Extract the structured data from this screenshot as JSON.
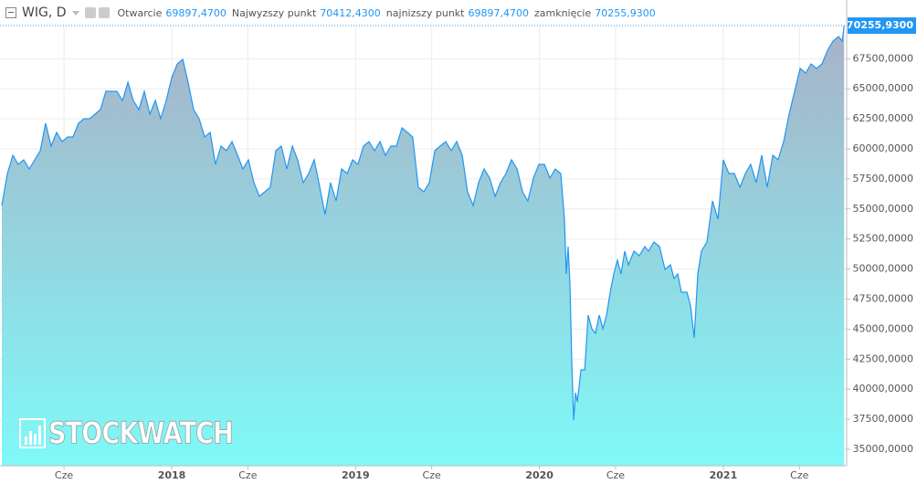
{
  "header": {
    "symbol": "WIG, D",
    "fields": [
      {
        "label": "Otwarcie",
        "value": "69897,4700"
      },
      {
        "label": "Najwyzszy punkt",
        "value": "70412,4300"
      },
      {
        "label": "najnizszy punkt",
        "value": "69897,4700"
      },
      {
        "label": "zamknięcie",
        "value": "70255,9300"
      }
    ]
  },
  "chart_data": {
    "type": "area",
    "watermark": "STOCKWATCH",
    "color": "#2196f3",
    "grid": true,
    "xlim": [
      2017.066,
      2021.661
    ],
    "ylim": [
      33630,
      70260
    ],
    "xticks": [
      {
        "value": 2017.414,
        "label": "Cze"
      },
      {
        "value": 2018.0,
        "label": "2018"
      },
      {
        "value": 2018.414,
        "label": "Cze"
      },
      {
        "value": 2019.0,
        "label": "2019"
      },
      {
        "value": 2019.414,
        "label": "Cze"
      },
      {
        "value": 2020.0,
        "label": "2020"
      },
      {
        "value": 2020.414,
        "label": "Cze"
      },
      {
        "value": 2021.0,
        "label": "2021"
      },
      {
        "value": 2021.414,
        "label": "Cze"
      }
    ],
    "yticks": [
      {
        "value": 35000,
        "label": "35000,0000"
      },
      {
        "value": 37500,
        "label": "37500,0000"
      },
      {
        "value": 40000,
        "label": "40000,0000"
      },
      {
        "value": 42500,
        "label": "42500,0000"
      },
      {
        "value": 45000,
        "label": "45000,0000"
      },
      {
        "value": 47500,
        "label": "47500,0000"
      },
      {
        "value": 50000,
        "label": "50000,0000"
      },
      {
        "value": 52500,
        "label": "52500,0000"
      },
      {
        "value": 55000,
        "label": "55000,0000"
      },
      {
        "value": 57500,
        "label": "57500,0000"
      },
      {
        "value": 60000,
        "label": "60000,0000"
      },
      {
        "value": 62500,
        "label": "62500,0000"
      },
      {
        "value": 65000,
        "label": "65000,0000"
      },
      {
        "value": 67500,
        "label": "67500,0000"
      }
    ],
    "last_price": {
      "value": 70255.93,
      "label": "70255,9300"
    },
    "x": [
      2017.076,
      2017.106,
      2017.136,
      2017.165,
      2017.195,
      2017.225,
      2017.255,
      2017.285,
      2017.314,
      2017.344,
      2017.374,
      2017.404,
      2017.434,
      2017.463,
      2017.493,
      2017.523,
      2017.553,
      2017.583,
      2017.612,
      2017.642,
      2017.672,
      2017.702,
      2017.732,
      2017.762,
      2017.791,
      2017.821,
      2017.851,
      2017.881,
      2017.911,
      2017.94,
      2017.97,
      2018.0,
      2018.03,
      2018.06,
      2018.089,
      2018.119,
      2018.149,
      2018.179,
      2018.209,
      2018.238,
      2018.268,
      2018.298,
      2018.328,
      2018.358,
      2018.387,
      2018.417,
      2018.447,
      2018.477,
      2018.507,
      2018.536,
      2018.566,
      2018.596,
      2018.626,
      2018.656,
      2018.685,
      2018.715,
      2018.745,
      2018.775,
      2018.805,
      2018.834,
      2018.864,
      2018.894,
      2018.924,
      2018.954,
      2018.984,
      2019.013,
      2019.043,
      2019.073,
      2019.103,
      2019.133,
      2019.162,
      2019.192,
      2019.222,
      2019.252,
      2019.282,
      2019.311,
      2019.341,
      2019.371,
      2019.401,
      2019.431,
      2019.46,
      2019.49,
      2019.52,
      2019.55,
      2019.58,
      2019.609,
      2019.639,
      2019.669,
      2019.699,
      2019.729,
      2019.759,
      2019.788,
      2019.818,
      2019.848,
      2019.878,
      2019.908,
      2019.937,
      2019.967,
      2019.997,
      2020.027,
      2020.057,
      2020.086,
      2020.116,
      2020.136,
      2020.146,
      2020.156,
      2020.166,
      2020.176,
      2020.186,
      2020.196,
      2020.206,
      2020.226,
      2020.246,
      2020.265,
      2020.285,
      2020.305,
      2020.325,
      2020.345,
      2020.365,
      2020.385,
      2020.404,
      2020.424,
      2020.444,
      2020.464,
      2020.484,
      2020.514,
      2020.543,
      2020.573,
      2020.593,
      2020.623,
      2020.653,
      2020.683,
      2020.712,
      2020.732,
      2020.752,
      2020.772,
      2020.802,
      2020.822,
      2020.842,
      2020.861,
      2020.881,
      2020.911,
      2020.941,
      2020.971,
      2021.0,
      2021.03,
      2021.06,
      2021.09,
      2021.12,
      2021.149,
      2021.179,
      2021.209,
      2021.239,
      2021.269,
      2021.298,
      2021.328,
      2021.358,
      2021.388,
      2021.418,
      2021.448,
      2021.477,
      2021.507,
      2021.537,
      2021.567,
      2021.597,
      2021.627,
      2021.647,
      2021.657
    ],
    "values": [
      55290,
      57950,
      59470,
      58710,
      59090,
      58330,
      59090,
      59850,
      62130,
      60230,
      61370,
      60610,
      60990,
      60990,
      62130,
      62510,
      62510,
      62890,
      63270,
      64790,
      64790,
      64790,
      64030,
      65550,
      64030,
      63270,
      64790,
      62890,
      64030,
      62510,
      64030,
      65930,
      67070,
      67450,
      65550,
      63270,
      62510,
      60990,
      61370,
      58710,
      60230,
      59850,
      60610,
      59470,
      58330,
      59090,
      57190,
      56050,
      56430,
      56810,
      59850,
      60230,
      58330,
      60230,
      59090,
      57190,
      57950,
      59090,
      56810,
      54530,
      57190,
      55670,
      58330,
      57950,
      59090,
      58710,
      60230,
      60610,
      59850,
      60610,
      59470,
      60230,
      60230,
      61750,
      61370,
      60990,
      56810,
      56430,
      57190,
      59850,
      60230,
      60610,
      59850,
      60610,
      59470,
      56430,
      55290,
      57190,
      58330,
      57570,
      56050,
      57190,
      57950,
      59090,
      58330,
      56430,
      55670,
      57570,
      58710,
      58710,
      57570,
      58330,
      57950,
      54150,
      49590,
      51870,
      48830,
      41990,
      37430,
      39710,
      38950,
      41610,
      41610,
      46170,
      45030,
      44650,
      46170,
      45030,
      46170,
      48070,
      49590,
      50730,
      49590,
      51490,
      50350,
      51490,
      51110,
      51870,
      51490,
      52250,
      51870,
      49970,
      50350,
      49210,
      49590,
      48070,
      48070,
      46930,
      44270,
      49590,
      51490,
      52250,
      55670,
      54150,
      59090,
      57950,
      57950,
      56810,
      57950,
      58710,
      57190,
      59470,
      56810,
      59470,
      59090,
      60610,
      62890,
      64790,
      66690,
      66310,
      67070,
      66690,
      67070,
      68210,
      68970,
      69350,
      68970,
      70255.93
    ]
  }
}
